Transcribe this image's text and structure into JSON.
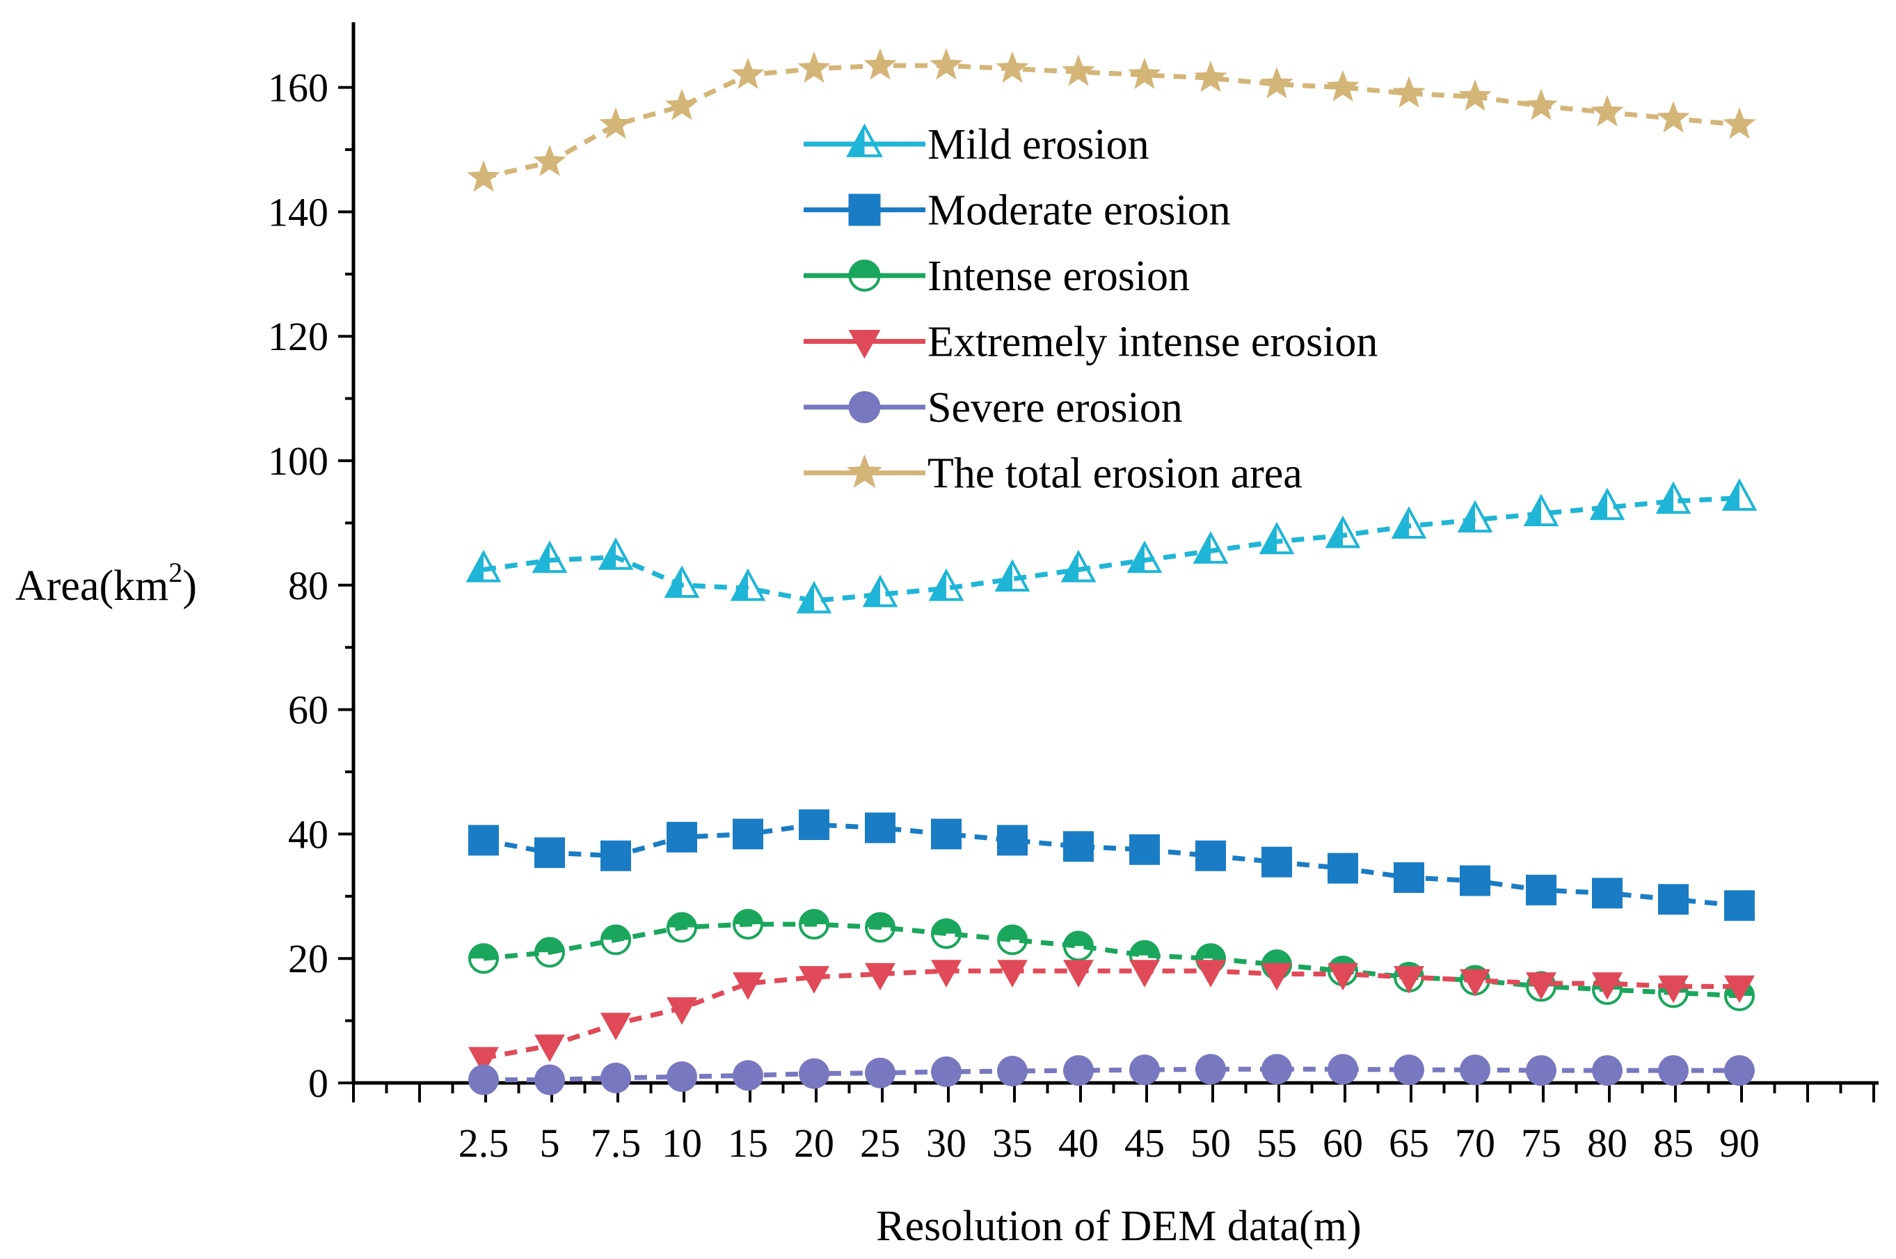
{
  "chart_data": {
    "type": "line",
    "title": "",
    "xlabel": "Resolution of DEM data(m)",
    "ylabel_prefix": "Area(km",
    "ylabel_sup": "2",
    "ylabel_suffix": ")",
    "categories": [
      "2.5",
      "5",
      "7.5",
      "10",
      "15",
      "20",
      "25",
      "30",
      "35",
      "40",
      "45",
      "50",
      "55",
      "60",
      "65",
      "70",
      "75",
      "80",
      "85",
      "90"
    ],
    "ylim": [
      0,
      170
    ],
    "yticks": [
      0,
      20,
      40,
      60,
      80,
      100,
      120,
      140,
      160
    ],
    "grid": false,
    "legend_position": "top-center",
    "series": [
      {
        "name": "Mild erosion",
        "color": "#1fb5d6",
        "marker": "triangle-up-half",
        "values": [
          82.5,
          84,
          84.5,
          80,
          79.5,
          77.5,
          78.5,
          79.5,
          81,
          82.5,
          84,
          85.5,
          87,
          88,
          89.5,
          90.5,
          91.5,
          92.5,
          93.5,
          94
        ]
      },
      {
        "name": "Moderate erosion",
        "color": "#1a7cc4",
        "marker": "square",
        "values": [
          39,
          37,
          36.5,
          39.5,
          40,
          41.5,
          41,
          40,
          39,
          38,
          37.5,
          36.5,
          35.5,
          34.5,
          33,
          32.5,
          31,
          30.5,
          29.5,
          28.5
        ]
      },
      {
        "name": "Intense erosion",
        "color": "#1aa65c",
        "marker": "circle-half",
        "values": [
          20,
          21,
          23,
          25,
          25.5,
          25.5,
          25,
          24,
          23,
          22,
          20.5,
          20,
          19,
          18,
          17,
          16.5,
          15.5,
          15,
          14.5,
          14
        ]
      },
      {
        "name": "Extremely intense erosion",
        "color": "#e04a58",
        "marker": "triangle-down",
        "values": [
          4,
          6,
          9.5,
          12,
          16,
          17,
          17.5,
          18,
          18,
          18,
          18,
          18,
          17.5,
          17.5,
          17,
          16.5,
          16,
          16,
          15.5,
          15.5
        ]
      },
      {
        "name": "Severe erosion",
        "color": "#7878c0",
        "marker": "circle",
        "values": [
          0.5,
          0.5,
          0.8,
          1,
          1.2,
          1.5,
          1.6,
          1.8,
          1.9,
          2,
          2.1,
          2.2,
          2.2,
          2.2,
          2.1,
          2.1,
          2,
          2,
          2,
          2
        ]
      },
      {
        "name": "The total erosion area",
        "color": "#d4b578",
        "marker": "star",
        "values": [
          145.5,
          148,
          154,
          157,
          162,
          163,
          163.5,
          163.5,
          163,
          162.5,
          162,
          161.5,
          160.5,
          160,
          159,
          158.5,
          157,
          156,
          155,
          154
        ]
      }
    ]
  }
}
